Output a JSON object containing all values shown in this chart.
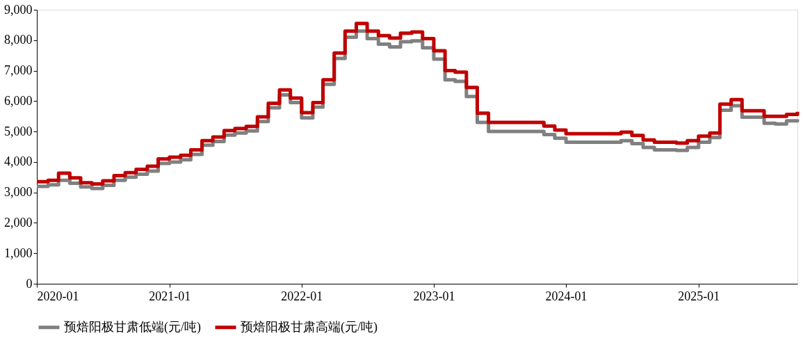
{
  "chart_data": {
    "type": "step",
    "x": [
      "2020-01",
      "2020-02",
      "2020-03",
      "2020-04",
      "2020-05",
      "2020-06",
      "2020-07",
      "2020-08",
      "2020-09",
      "2020-10",
      "2020-11",
      "2020-12",
      "2021-01",
      "2021-02",
      "2021-03",
      "2021-04",
      "2021-05",
      "2021-06",
      "2021-07",
      "2021-08",
      "2021-09",
      "2021-10",
      "2021-11",
      "2021-12",
      "2022-01",
      "2022-02",
      "2022-03",
      "2022-04",
      "2022-05",
      "2022-06",
      "2022-07",
      "2022-08",
      "2022-09",
      "2022-10",
      "2022-11",
      "2022-12",
      "2023-01",
      "2023-02",
      "2023-03",
      "2023-04",
      "2023-05",
      "2023-06",
      "2023-07",
      "2023-08",
      "2023-09",
      "2023-10",
      "2023-11",
      "2023-12",
      "2024-01",
      "2024-02",
      "2024-03",
      "2024-04",
      "2024-05",
      "2024-06",
      "2024-07",
      "2024-08",
      "2024-09",
      "2024-10",
      "2024-11",
      "2024-12",
      "2025-01",
      "2025-02",
      "2025-03",
      "2025-04",
      "2025-05",
      "2025-06",
      "2025-07",
      "2025-08",
      "2025-09",
      "2025-10"
    ],
    "series": [
      {
        "name": "预焙阳极甘肃低端(元/吨)",
        "color": "#808080",
        "values": [
          3200,
          3250,
          3400,
          3300,
          3180,
          3130,
          3230,
          3400,
          3500,
          3600,
          3700,
          3950,
          4000,
          4070,
          4250,
          4550,
          4670,
          4880,
          4950,
          5020,
          5330,
          5780,
          6200,
          5950,
          5450,
          5800,
          6550,
          7400,
          8100,
          8300,
          8050,
          7870,
          7780,
          7950,
          7980,
          7750,
          7380,
          6700,
          6650,
          6150,
          5300,
          5000,
          5000,
          5000,
          5000,
          5000,
          4900,
          4780,
          4650,
          4650,
          4650,
          4650,
          4650,
          4700,
          4600,
          4480,
          4400,
          4400,
          4380,
          4480,
          4650,
          4800,
          5700,
          5850,
          5470,
          5470,
          5270,
          5250,
          5350,
          5400
        ]
      },
      {
        "name": "预焙阳极甘肃高端(元/吨)",
        "color": "#c00000",
        "values": [
          3350,
          3400,
          3630,
          3480,
          3320,
          3280,
          3380,
          3550,
          3650,
          3760,
          3860,
          4100,
          4160,
          4220,
          4400,
          4700,
          4820,
          5030,
          5100,
          5170,
          5480,
          5930,
          6370,
          6100,
          5620,
          5950,
          6700,
          7580,
          8300,
          8550,
          8300,
          8150,
          8070,
          8230,
          8270,
          8050,
          7650,
          7000,
          6950,
          6450,
          5600,
          5300,
          5300,
          5300,
          5300,
          5300,
          5180,
          5050,
          4930,
          4930,
          4930,
          4930,
          4930,
          4980,
          4870,
          4720,
          4650,
          4650,
          4620,
          4700,
          4850,
          4950,
          5900,
          6050,
          5680,
          5680,
          5500,
          5500,
          5560,
          5650
        ]
      }
    ],
    "xlim": [
      "2020-01",
      "2025-10"
    ],
    "xticks": [
      "2020-01",
      "2021-01",
      "2022-01",
      "2023-01",
      "2024-01",
      "2025-01"
    ],
    "ylim": [
      0,
      9000
    ],
    "yticks": [
      0,
      {
        "value": 1000,
        "label": "1,000"
      },
      {
        "value": 2000,
        "label": "2,000"
      },
      {
        "value": 3000,
        "label": "3,000"
      },
      {
        "value": 4000,
        "label": "4,000"
      },
      {
        "value": 5000,
        "label": "5,000"
      },
      {
        "value": 6000,
        "label": "6,000"
      },
      {
        "value": 7000,
        "label": "7,000"
      },
      {
        "value": 8000,
        "label": "8,000"
      },
      {
        "value": 9000,
        "label": "9,000"
      }
    ],
    "grid": false,
    "legend": "bottom",
    "line_style": "solid",
    "marker": "none"
  }
}
